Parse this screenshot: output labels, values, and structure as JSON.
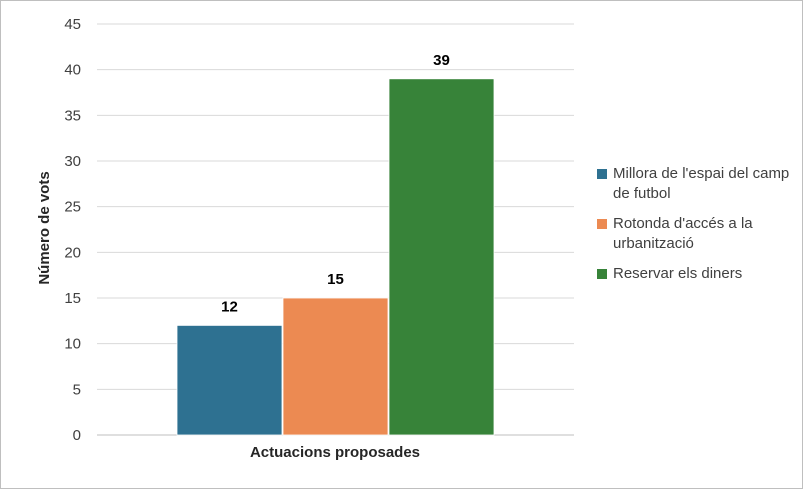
{
  "chart_data": {
    "type": "bar",
    "categories": [
      "Actuacions proposades"
    ],
    "series": [
      {
        "name": "Millora de l'espai del camp de futbol",
        "values": [
          12
        ],
        "color": "#2e7191"
      },
      {
        "name": "Rotonda d'accés a la urbanització",
        "values": [
          15
        ],
        "color": "#ec8a52"
      },
      {
        "name": "Reservar els diners",
        "values": [
          39
        ],
        "color": "#378339"
      }
    ],
    "xlabel": "Actuacions proposades",
    "ylabel": "Número de vots",
    "ylim": [
      0,
      45
    ],
    "yticks": [
      0,
      5,
      10,
      15,
      20,
      25,
      30,
      35,
      40,
      45
    ],
    "grid": true,
    "legend": "right",
    "data_labels": true
  }
}
